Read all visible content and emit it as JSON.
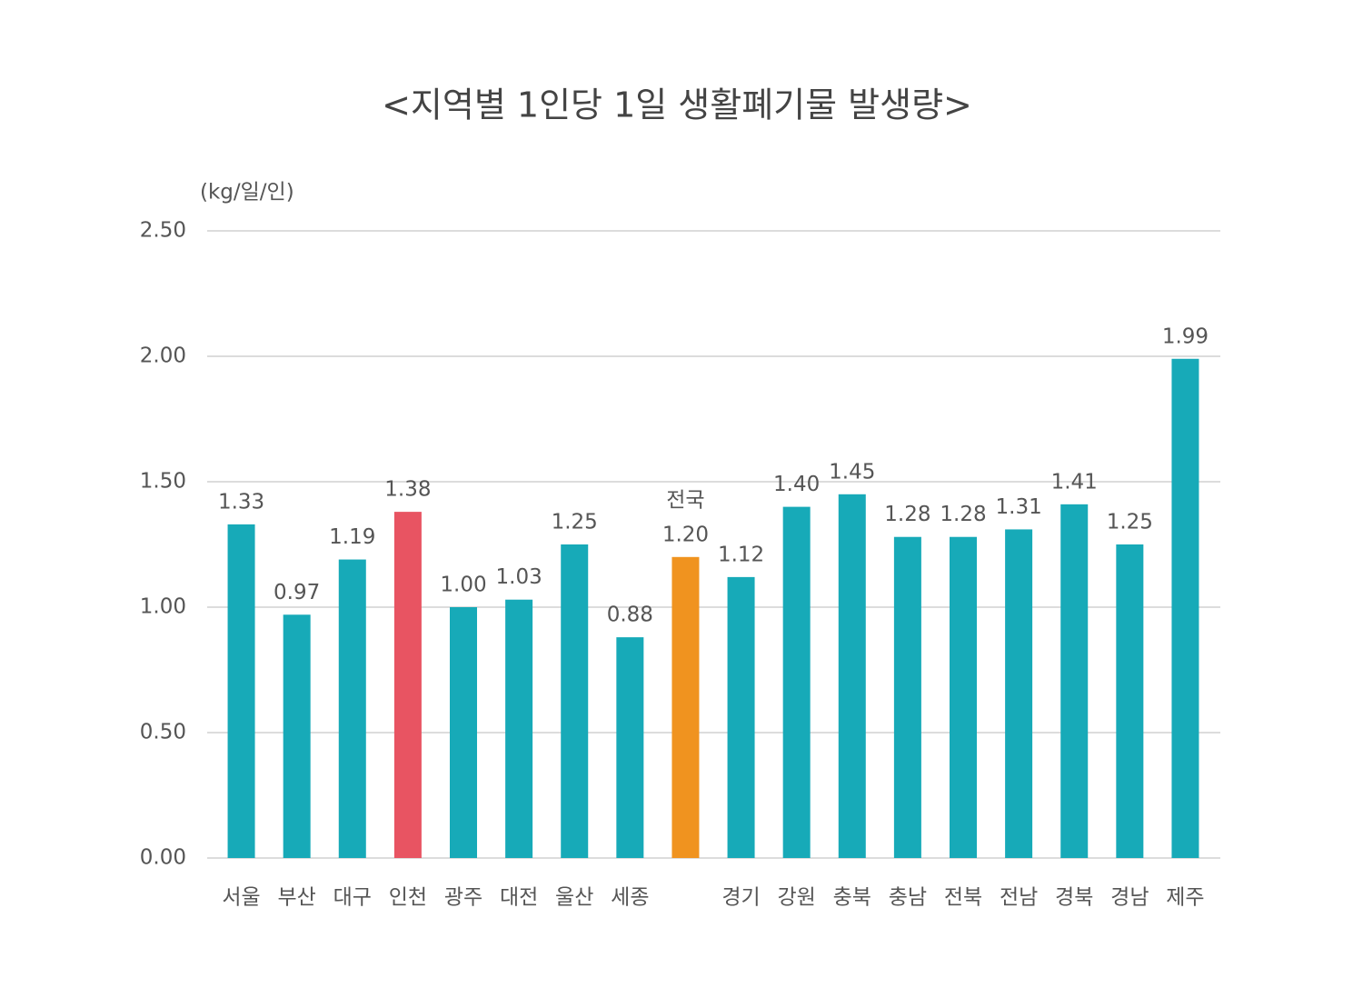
{
  "chart_data": {
    "type": "bar",
    "title": "<지역별 1인당 1일 생활폐기물 발생량>",
    "y_label": "(kg/일/인)",
    "categories": [
      "서울",
      "부산",
      "대구",
      "인천",
      "광주",
      "대전",
      "울산",
      "세종",
      null,
      "경기",
      "강원",
      "충북",
      "충남",
      "전북",
      "전남",
      "경북",
      "경남",
      "제주"
    ],
    "values": [
      1.33,
      0.97,
      1.19,
      1.38,
      1.0,
      1.03,
      1.25,
      0.88,
      1.2,
      1.12,
      1.4,
      1.45,
      1.28,
      1.28,
      1.31,
      1.41,
      1.25,
      1.99
    ],
    "value_labels": [
      "1.33",
      "0.97",
      "1.19",
      "1.38",
      "1.00",
      "1.03",
      "1.25",
      "0.88",
      "1.20",
      "1.12",
      "1.40",
      "1.45",
      "1.28",
      "1.28",
      "1.31",
      "1.41",
      "1.25",
      "1.99"
    ],
    "colors": [
      "#17aab8",
      "#17aab8",
      "#17aab8",
      "#e85462",
      "#17aab8",
      "#17aab8",
      "#17aab8",
      "#17aab8",
      "#f0931f",
      "#17aab8",
      "#17aab8",
      "#17aab8",
      "#17aab8",
      "#17aab8",
      "#17aab8",
      "#17aab8",
      "#17aab8",
      "#17aab8"
    ],
    "label_colors": [
      "#555555",
      "#555555",
      "#555555",
      "#e85462",
      "#555555",
      "#555555",
      "#555555",
      "#555555",
      null,
      "#555555",
      "#555555",
      "#555555",
      "#555555",
      "#555555",
      "#555555",
      "#555555",
      "#555555",
      "#555555"
    ],
    "annotations": [
      {
        "text": "전국",
        "color": "#e0451f"
      }
    ],
    "ylim": [
      0,
      2.5
    ],
    "yticks": [
      {
        "value": 0,
        "label": "0.00"
      },
      {
        "value": 0.5,
        "label": "0.50"
      },
      {
        "value": 1,
        "label": "1.00"
      },
      {
        "value": 1.5,
        "label": "1.50"
      },
      {
        "value": 2,
        "label": "2.00"
      },
      {
        "value": 2.5,
        "label": "2.50"
      }
    ],
    "grid": true
  }
}
